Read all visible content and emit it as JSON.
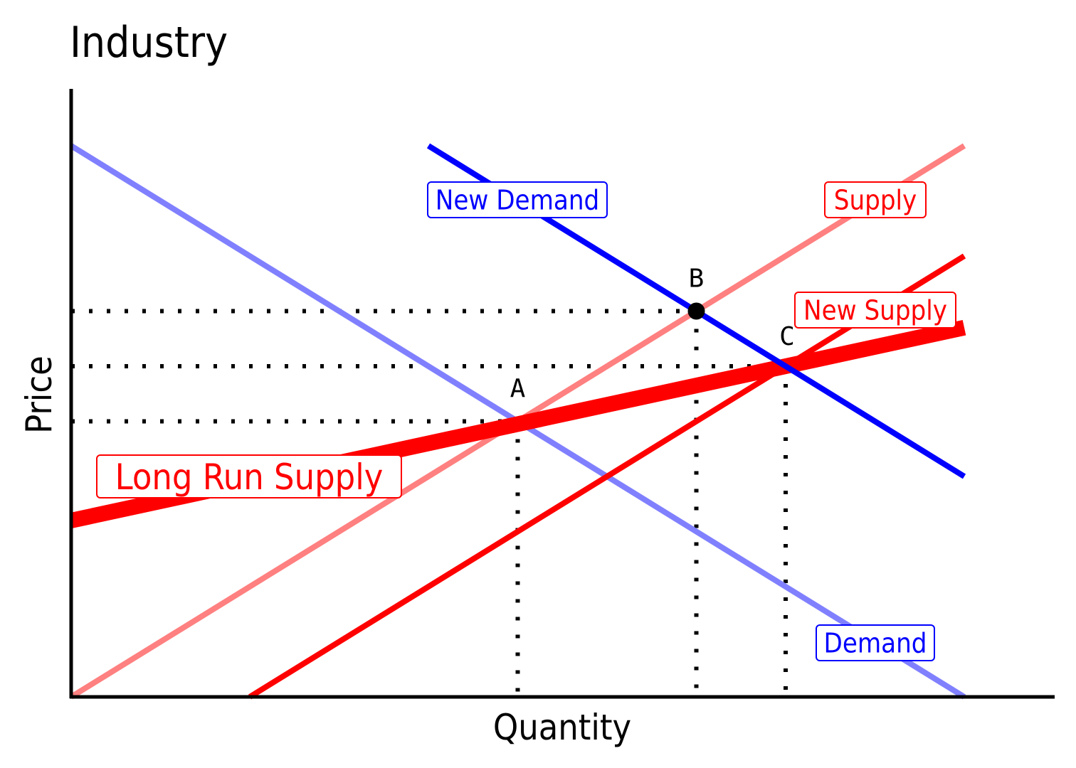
{
  "chart_data": {
    "type": "line",
    "title": "Industry",
    "xlabel": "Quantity",
    "ylabel": "Price",
    "xlim": [
      0,
      10
    ],
    "ylim": [
      0,
      10
    ],
    "grid": false,
    "legend": "none",
    "colors": {
      "demand": "#8080ff",
      "new_demand": "#0000ff",
      "supply": "#ff8080",
      "new_supply": "#ff0000",
      "long_run_supply": "#ff0000",
      "guide": "#000000"
    },
    "series": [
      {
        "key": "demand",
        "name": "Demand",
        "x": [
          0,
          10
        ],
        "y": [
          10,
          0
        ]
      },
      {
        "key": "new_demand",
        "name": "New Demand",
        "x": [
          4,
          10
        ],
        "y": [
          10,
          4
        ]
      },
      {
        "key": "supply",
        "name": "Supply",
        "x": [
          0,
          10
        ],
        "y": [
          0,
          10
        ]
      },
      {
        "key": "new_supply",
        "name": "New Supply",
        "x": [
          2,
          10
        ],
        "y": [
          0,
          8
        ]
      },
      {
        "key": "long_run_supply",
        "name": "Long Run Supply",
        "x": [
          0,
          10
        ],
        "y": [
          3.2,
          6.7
        ]
      }
    ],
    "points": [
      {
        "label": "A",
        "x": 5,
        "y": 5,
        "marker": false
      },
      {
        "label": "B",
        "x": 7,
        "y": 7,
        "marker": true
      },
      {
        "label": "C",
        "x": 8,
        "y": 6,
        "marker": false
      }
    ],
    "guides": [
      {
        "x": 5,
        "y": 5
      },
      {
        "x": 7,
        "y": 7
      },
      {
        "x": 8,
        "y": 6
      }
    ]
  }
}
